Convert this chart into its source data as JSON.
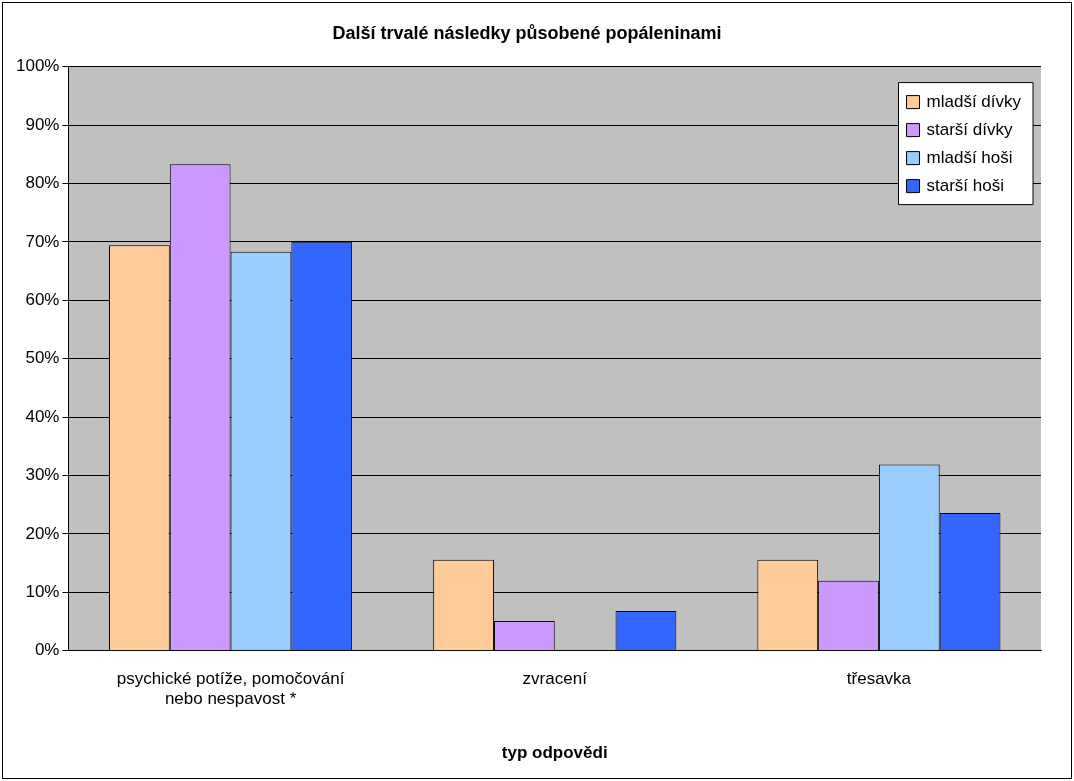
{
  "chart_data": {
    "type": "bar",
    "title": "Další trvalé následky působené popáleninami",
    "xlabel": "typ odpovědi",
    "categories": [
      "psychické potíže, pomočování nebo nespavost *",
      "zvracení",
      "třesavka"
    ],
    "series": [
      {
        "name": "mladší dívky",
        "color": "#ffcc99",
        "values": [
          69.4,
          15.6,
          15.6
        ]
      },
      {
        "name": "starší dívky",
        "color": "#cc99ff",
        "values": [
          83.3,
          5.1,
          12.0
        ]
      },
      {
        "name": "mladší hoši",
        "color": "#99ccff",
        "values": [
          68.3,
          0,
          31.9
        ]
      },
      {
        "name": "starší hoši",
        "color": "#3366ff",
        "values": [
          70.0,
          6.8,
          23.6
        ]
      }
    ],
    "ylim": [
      0,
      100
    ],
    "yticks": [
      {
        "value": 0,
        "label": "0%"
      },
      {
        "value": 10,
        "label": "10%"
      },
      {
        "value": 20,
        "label": "20%"
      },
      {
        "value": 30,
        "label": "30%"
      },
      {
        "value": 40,
        "label": "40%"
      },
      {
        "value": 50,
        "label": "50%"
      },
      {
        "value": 60,
        "label": "60%"
      },
      {
        "value": 70,
        "label": "70%"
      },
      {
        "value": 80,
        "label": "80%"
      },
      {
        "value": 90,
        "label": "90%"
      },
      {
        "value": 100,
        "label": "100%"
      }
    ],
    "grid": "y",
    "legend": "top right"
  }
}
